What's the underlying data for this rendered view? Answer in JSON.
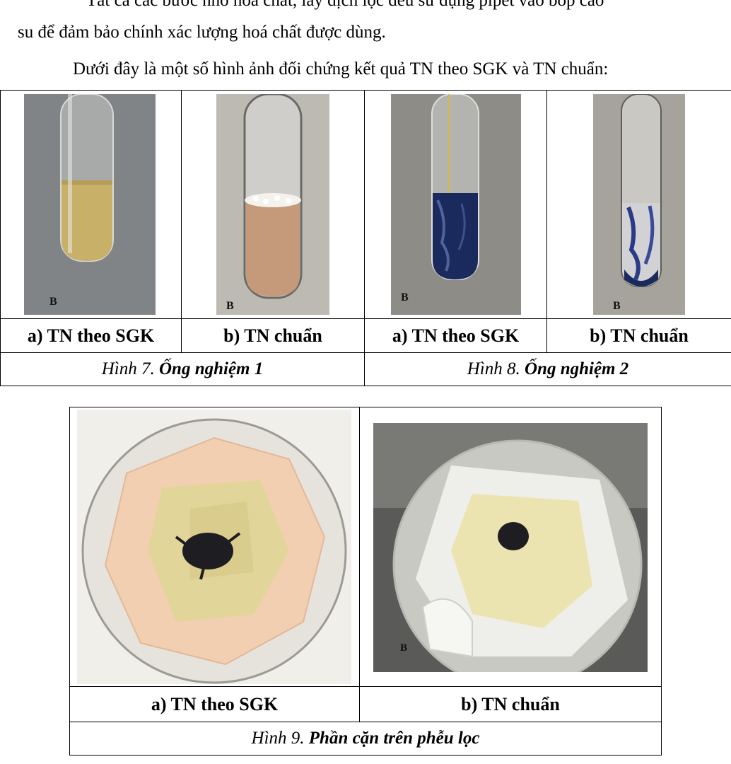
{
  "paragraph": {
    "line_top": "Tất cả các bước nhỏ hoá chất, lấy dịch lọc đều sử dụng pipet vào bóp cao",
    "line_2": "su để đảm bảo chính xác lượng hoá chất được dùng.",
    "line_3": "Dưới đây là một số hình ảnh đối chứng kết quả TN theo SGK và TN chuẩn:"
  },
  "figure_table_1": {
    "photo_marker": "B",
    "captions": [
      "a) TN theo SGK",
      "b) TN chuẩn",
      "a) TN theo SGK",
      "b) TN chuẩn"
    ],
    "fig7": {
      "prefix": "Hình 7.",
      "title": "Ống nghiệm 1"
    },
    "fig8": {
      "prefix": "Hình 8.",
      "title": "Ống nghiệm 2"
    }
  },
  "figure_table_2": {
    "photo_marker": "B",
    "captions": [
      "a) TN theo SGK",
      "b) TN chuẩn"
    ],
    "fig9": {
      "prefix": "Hình 9.",
      "title": "Phần cặn trên phễu lọc"
    }
  },
  "colors": {
    "photo_bg_1": "#7a7d80",
    "photo_bg_2": "#bcbab2",
    "photo_bg_3": "#8d8c87",
    "photo_bg_4": "#a6a39c",
    "liquid_yellow": "#c8b068",
    "liquid_peach": "#c49a7a",
    "liquid_blue": "#1b2a5c",
    "filter_pink": "#f3cfb2",
    "filter_white": "#eeeeea",
    "residue": "#e2d59a",
    "dark_solid": "#1e1e22"
  }
}
